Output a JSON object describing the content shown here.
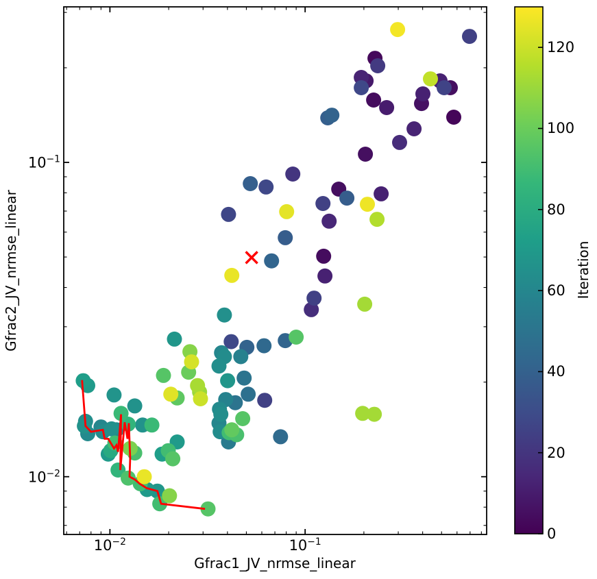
{
  "chart_data": {
    "type": "scatter",
    "title": "",
    "xlabel": "Gfrac1_JV_nrmse_linear",
    "ylabel": "Gfrac2_JV_nrmse_linear",
    "xscale": "log",
    "yscale": "log",
    "xlim": [
      0.0058,
      0.851
    ],
    "ylim": [
      0.00655,
      0.3125
    ],
    "grid": false,
    "x_ticks": [
      {
        "value": 0.01,
        "base": "10",
        "exp": "−2"
      },
      {
        "value": 0.1,
        "base": "10",
        "exp": "−1"
      }
    ],
    "y_ticks": [
      {
        "value": 0.1,
        "base": "10",
        "exp": "−1"
      },
      {
        "value": 0.01,
        "base": "10",
        "exp": "−2"
      }
    ],
    "colorbar": {
      "label": "Iteration",
      "vmin": 0,
      "vmax": 130,
      "ticks": [
        0,
        20,
        40,
        60,
        80,
        100,
        120
      ],
      "colormap": "viridis",
      "viridis_stops": [
        "#440154",
        "#482878",
        "#3e4a89",
        "#31688e",
        "#26828e",
        "#1f9e89",
        "#35b779",
        "#6ece58",
        "#b5de2b",
        "#fde725"
      ]
    },
    "marker_color_field": "Iteration",
    "points": [
      [
        0.2977,
        0.2646,
        128
      ],
      [
        0.695,
        0.2517,
        25
      ],
      [
        0.228,
        0.2144,
        3
      ],
      [
        0.2355,
        0.2029,
        22
      ],
      [
        0.1939,
        0.1863,
        13
      ],
      [
        0.2052,
        0.1817,
        9
      ],
      [
        0.4387,
        0.1844,
        118
      ],
      [
        0.4912,
        0.1817,
        12
      ],
      [
        0.5156,
        0.1728,
        26
      ],
      [
        0.5545,
        0.1728,
        5
      ],
      [
        0.1939,
        0.1728,
        28
      ],
      [
        0.4013,
        0.1652,
        12
      ],
      [
        0.2244,
        0.1579,
        4
      ],
      [
        0.3949,
        0.1539,
        6
      ],
      [
        0.2616,
        0.1494,
        10
      ],
      [
        0.1371,
        0.1413,
        41
      ],
      [
        0.1306,
        0.1386,
        39
      ],
      [
        0.5773,
        0.1393,
        2
      ],
      [
        0.3615,
        0.1279,
        13
      ],
      [
        0.3049,
        0.1157,
        16
      ],
      [
        0.2036,
        0.1062,
        5
      ],
      [
        0.0865,
        0.0918,
        20
      ],
      [
        0.1486,
        0.0822,
        5
      ],
      [
        0.1637,
        0.077,
        38
      ],
      [
        0.2452,
        0.0794,
        12
      ],
      [
        0.2085,
        0.0736,
        127
      ],
      [
        0.2336,
        0.0659,
        115
      ],
      [
        0.2019,
        0.0354,
        112
      ],
      [
        0.0524,
        0.0856,
        39
      ],
      [
        0.0631,
        0.0835,
        28
      ],
      [
        0.0405,
        0.0683,
        27
      ],
      [
        0.0804,
        0.0697,
        125
      ],
      [
        0.1234,
        0.074,
        25
      ],
      [
        0.1327,
        0.065,
        14
      ],
      [
        0.0791,
        0.0576,
        38
      ],
      [
        0.0673,
        0.0486,
        42
      ],
      [
        0.1244,
        0.0503,
        4
      ],
      [
        0.0421,
        0.0437,
        126
      ],
      [
        0.1264,
        0.0435,
        12
      ],
      [
        0.1111,
        0.037,
        25
      ],
      [
        0.1076,
        0.034,
        17
      ],
      [
        0.0386,
        0.0327,
        65
      ],
      [
        0.0214,
        0.0274,
        68
      ],
      [
        0.0257,
        0.025,
        106
      ],
      [
        0.0262,
        0.0232,
        122
      ],
      [
        0.0253,
        0.0215,
        100
      ],
      [
        0.0418,
        0.0269,
        28
      ],
      [
        0.0503,
        0.0258,
        41
      ],
      [
        0.0616,
        0.0261,
        44
      ],
      [
        0.0791,
        0.0271,
        42
      ],
      [
        0.09,
        0.0278,
        95
      ],
      [
        0.0373,
        0.0248,
        60
      ],
      [
        0.0386,
        0.0241,
        63
      ],
      [
        0.0468,
        0.0241,
        57
      ],
      [
        0.0362,
        0.0225,
        64
      ],
      [
        0.0401,
        0.0202,
        68
      ],
      [
        0.0487,
        0.0206,
        50
      ],
      [
        0.0188,
        0.021,
        95
      ],
      [
        0.0073,
        0.0202,
        72
      ],
      [
        0.0077,
        0.0195,
        70
      ],
      [
        0.0105,
        0.0182,
        67
      ],
      [
        0.0205,
        0.0183,
        124
      ],
      [
        0.0221,
        0.0178,
        97
      ],
      [
        0.0281,
        0.0195,
        113
      ],
      [
        0.0288,
        0.0186,
        110
      ],
      [
        0.0291,
        0.0177,
        120
      ],
      [
        0.0134,
        0.0168,
        66
      ],
      [
        0.0114,
        0.0159,
        88
      ],
      [
        0.0075,
        0.015,
        64
      ],
      [
        0.0074,
        0.0145,
        66
      ],
      [
        0.0077,
        0.0137,
        62
      ],
      [
        0.009,
        0.0144,
        60
      ],
      [
        0.0092,
        0.0139,
        63
      ],
      [
        0.0102,
        0.0142,
        65
      ],
      [
        0.0108,
        0.0141,
        61
      ],
      [
        0.0106,
        0.0128,
        90
      ],
      [
        0.0101,
        0.0121,
        79
      ],
      [
        0.0098,
        0.0118,
        70
      ],
      [
        0.0124,
        0.0147,
        85
      ],
      [
        0.0127,
        0.0123,
        104
      ],
      [
        0.0134,
        0.0119,
        92
      ],
      [
        0.0147,
        0.0146,
        66
      ],
      [
        0.0164,
        0.0146,
        88
      ],
      [
        0.0221,
        0.0129,
        70
      ],
      [
        0.0185,
        0.0118,
        72
      ],
      [
        0.0199,
        0.0121,
        90
      ],
      [
        0.021,
        0.0114,
        95
      ],
      [
        0.011,
        0.0105,
        85
      ],
      [
        0.0124,
        0.0099,
        93
      ],
      [
        0.015,
        0.01,
        126
      ],
      [
        0.0143,
        0.0095,
        90
      ],
      [
        0.0155,
        0.0091,
        70
      ],
      [
        0.0175,
        0.009,
        68
      ],
      [
        0.0202,
        0.0087,
        106
      ],
      [
        0.018,
        0.0082,
        90
      ],
      [
        0.0318,
        0.0079,
        95
      ],
      [
        0.0511,
        0.0183,
        48
      ],
      [
        0.0621,
        0.0175,
        25
      ],
      [
        0.0392,
        0.0176,
        58
      ],
      [
        0.0439,
        0.0172,
        50
      ],
      [
        0.0364,
        0.0164,
        62
      ],
      [
        0.037,
        0.0158,
        64
      ],
      [
        0.0362,
        0.0148,
        60
      ],
      [
        0.0367,
        0.0139,
        63
      ],
      [
        0.0405,
        0.0129,
        54
      ],
      [
        0.0479,
        0.0153,
        95
      ],
      [
        0.0421,
        0.0141,
        98
      ],
      [
        0.0446,
        0.0136,
        92
      ],
      [
        0.0408,
        0.0138,
        90
      ],
      [
        0.0748,
        0.0134,
        45
      ],
      [
        0.1971,
        0.0159,
        112
      ],
      [
        0.2262,
        0.0158,
        112
      ]
    ],
    "optimum_marker": {
      "x": 0.0532,
      "y": 0.0498,
      "symbol": "x",
      "color": "#ff0000"
    },
    "trace_line": {
      "color": "#ff0000",
      "points": [
        [
          0.0072,
          0.0203
        ],
        [
          0.0075,
          0.0145
        ],
        [
          0.008,
          0.0139
        ],
        [
          0.0092,
          0.0141
        ],
        [
          0.0094,
          0.0132
        ],
        [
          0.0098,
          0.0132
        ],
        [
          0.0105,
          0.0123
        ],
        [
          0.0108,
          0.0126
        ],
        [
          0.011,
          0.012
        ],
        [
          0.0114,
          0.0158
        ],
        [
          0.0113,
          0.0105
        ],
        [
          0.0119,
          0.0149
        ],
        [
          0.0123,
          0.0132
        ],
        [
          0.0125,
          0.0148
        ],
        [
          0.0127,
          0.0114
        ],
        [
          0.0126,
          0.01
        ],
        [
          0.0134,
          0.0098
        ],
        [
          0.0142,
          0.0095
        ],
        [
          0.0154,
          0.0092
        ],
        [
          0.0175,
          0.009
        ],
        [
          0.0183,
          0.0082
        ],
        [
          0.0307,
          0.0079
        ]
      ]
    },
    "style": {
      "marker_diameter_px": 22,
      "frame_color": "#000000",
      "background": "#ffffff"
    }
  }
}
